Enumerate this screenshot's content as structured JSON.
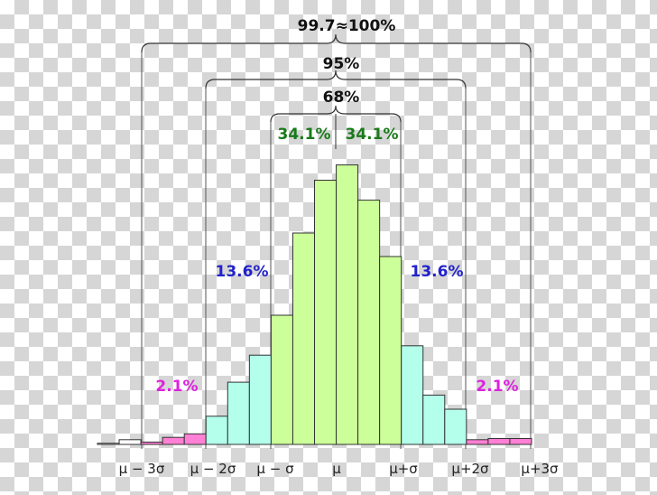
{
  "chart_data": {
    "type": "bar",
    "bins": [
      {
        "value": 0.1,
        "region": "tail"
      },
      {
        "value": 0.4,
        "region": "tail"
      },
      {
        "value": 0.2,
        "region": "outer"
      },
      {
        "value": 0.6,
        "region": "outer"
      },
      {
        "value": 0.9,
        "region": "outer"
      },
      {
        "value": 2.4,
        "region": "middle"
      },
      {
        "value": 5.3,
        "region": "middle"
      },
      {
        "value": 7.6,
        "region": "middle"
      },
      {
        "value": 11.0,
        "region": "center"
      },
      {
        "value": 18.0,
        "region": "center"
      },
      {
        "value": 22.5,
        "region": "center"
      },
      {
        "value": 23.8,
        "region": "center"
      },
      {
        "value": 20.8,
        "region": "center"
      },
      {
        "value": 16.0,
        "region": "center"
      },
      {
        "value": 8.4,
        "region": "middle"
      },
      {
        "value": 4.2,
        "region": "middle"
      },
      {
        "value": 3.0,
        "region": "middle"
      },
      {
        "value": 0.4,
        "region": "outer"
      },
      {
        "value": 0.5,
        "region": "outer"
      },
      {
        "value": 0.5,
        "region": "outer"
      }
    ],
    "ylim": [
      0,
      25
    ],
    "tick_labels": [
      "μ − 3σ",
      "μ − 2σ",
      "μ − σ",
      "μ",
      "μ+σ",
      "μ+2σ",
      "μ+3σ"
    ],
    "annotations": {
      "outer_brace": "99.7≈100%",
      "mid_brace": "95%",
      "inner_brace": "68%",
      "center_left": "34.1%",
      "center_right": "34.1%",
      "middle_left": "13.6%",
      "middle_right": "13.6%",
      "outer_left": "2.1%",
      "outer_right": "2.1%"
    },
    "colors": {
      "center": "#ccff99",
      "middle": "#b3ffec",
      "outer": "#ff80d4",
      "tail": "#ffffff",
      "center_text": "#1a7a1a",
      "middle_text": "#2222cc",
      "outer_text": "#dd22dd"
    },
    "grid": false
  }
}
